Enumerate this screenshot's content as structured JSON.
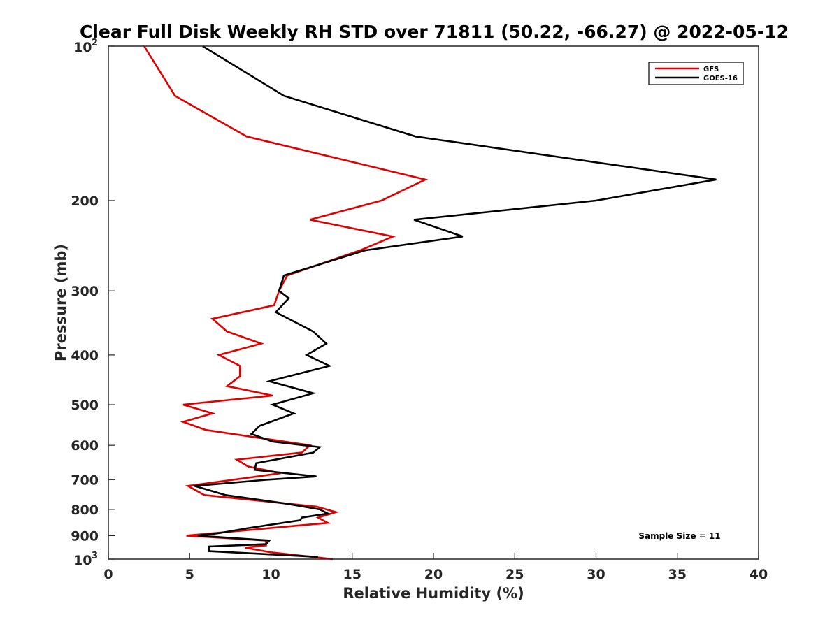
{
  "chart_data": {
    "type": "line",
    "title": "Clear Full Disk Weekly RH STD over 71811 (50.22, -66.27) @ 2022-05-12",
    "xlabel": "Relative Humidity (%)",
    "ylabel": "Pressure (mb)",
    "xlim": [
      0,
      40
    ],
    "ylim": [
      100,
      1000
    ],
    "y_scale": "log",
    "y_reversed": true,
    "x_ticks": [
      0,
      5,
      10,
      15,
      20,
      25,
      30,
      35,
      40
    ],
    "y_ticks": [
      {
        "value": 100,
        "label": "10",
        "sup": "2"
      },
      {
        "value": 200,
        "label": "200"
      },
      {
        "value": 300,
        "label": "300"
      },
      {
        "value": 400,
        "label": "400"
      },
      {
        "value": 500,
        "label": "500"
      },
      {
        "value": 600,
        "label": "600"
      },
      {
        "value": 700,
        "label": "700"
      },
      {
        "value": 800,
        "label": "800"
      },
      {
        "value": 900,
        "label": "900"
      },
      {
        "value": 1000,
        "label": "10",
        "sup": "3"
      }
    ],
    "grid": false,
    "legend_position": "top-right",
    "annotation": "Sample Size = 11",
    "series": [
      {
        "name": "GFS",
        "color": "#e00000",
        "points": [
          [
            2.2,
            100
          ],
          [
            4.1,
            125
          ],
          [
            8.5,
            150
          ],
          [
            19.5,
            182
          ],
          [
            16.8,
            200
          ],
          [
            12.4,
            218
          ],
          [
            17.5,
            235
          ],
          [
            15.5,
            250
          ],
          [
            11.0,
            280
          ],
          [
            10.5,
            300
          ],
          [
            10.2,
            320
          ],
          [
            6.4,
            340
          ],
          [
            7.3,
            360
          ],
          [
            9.4,
            380
          ],
          [
            6.8,
            400
          ],
          [
            8.1,
            420
          ],
          [
            8.1,
            440
          ],
          [
            7.3,
            460
          ],
          [
            10.1,
            480
          ],
          [
            4.6,
            500
          ],
          [
            6.4,
            520
          ],
          [
            4.6,
            540
          ],
          [
            6.0,
            560
          ],
          [
            12.4,
            600
          ],
          [
            11.9,
            620
          ],
          [
            7.9,
            640
          ],
          [
            8.6,
            660
          ],
          [
            10.6,
            680
          ],
          [
            4.9,
            720
          ],
          [
            5.9,
            750
          ],
          [
            12.8,
            790
          ],
          [
            14.0,
            810
          ],
          [
            12.9,
            830
          ],
          [
            13.5,
            850
          ],
          [
            4.8,
            900
          ],
          [
            9.7,
            920
          ],
          [
            9.7,
            940
          ],
          [
            8.4,
            950
          ],
          [
            10.0,
            970
          ],
          [
            13.8,
            1000
          ]
        ]
      },
      {
        "name": "GOES-16",
        "color": "#000000",
        "points": [
          [
            5.8,
            100
          ],
          [
            10.8,
            125
          ],
          [
            18.9,
            150
          ],
          [
            37.4,
            182
          ],
          [
            30.0,
            200
          ],
          [
            18.8,
            218
          ],
          [
            21.8,
            235
          ],
          [
            15.8,
            250
          ],
          [
            10.8,
            280
          ],
          [
            10.5,
            300
          ],
          [
            11.1,
            310
          ],
          [
            10.3,
            330
          ],
          [
            12.6,
            360
          ],
          [
            13.4,
            380
          ],
          [
            12.2,
            400
          ],
          [
            13.6,
            420
          ],
          [
            9.9,
            450
          ],
          [
            12.6,
            475
          ],
          [
            10.1,
            500
          ],
          [
            11.4,
            520
          ],
          [
            9.3,
            550
          ],
          [
            8.8,
            570
          ],
          [
            10.1,
            590
          ],
          [
            13.0,
            605
          ],
          [
            12.6,
            620
          ],
          [
            9.1,
            650
          ],
          [
            9.0,
            670
          ],
          [
            12.8,
            690
          ],
          [
            9.8,
            700
          ],
          [
            5.3,
            720
          ],
          [
            7.2,
            750
          ],
          [
            11.0,
            780
          ],
          [
            13.0,
            800
          ],
          [
            13.5,
            815
          ],
          [
            11.9,
            830
          ],
          [
            11.8,
            840
          ],
          [
            8.6,
            870
          ],
          [
            6.8,
            890
          ],
          [
            5.5,
            900
          ],
          [
            9.9,
            920
          ],
          [
            9.7,
            935
          ],
          [
            6.2,
            945
          ],
          [
            6.2,
            965
          ],
          [
            12.9,
            990
          ]
        ]
      }
    ]
  }
}
